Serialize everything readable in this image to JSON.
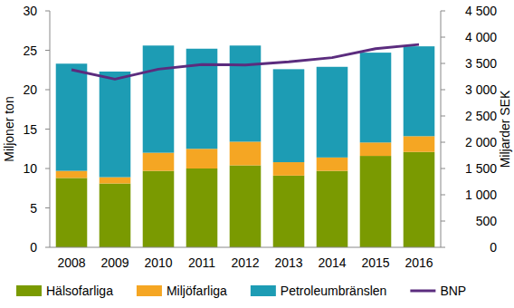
{
  "chart_data": {
    "type": "bar",
    "stacked": true,
    "grid": false,
    "legend": "bottom",
    "y_label": "Miljoner ton",
    "y2_label": "Miljarder SEK",
    "categories": [
      "2008",
      "2009",
      "2010",
      "2011",
      "2012",
      "2013",
      "2014",
      "2015",
      "2016"
    ],
    "ylim": [
      0,
      30
    ],
    "yticks": [
      0,
      5,
      10,
      15,
      20,
      25,
      30
    ],
    "y2lim": [
      0,
      4500
    ],
    "y2ticks": [
      0,
      500,
      {
        "value": 1000,
        "label": "1 000"
      },
      {
        "value": 1500,
        "label": "1 500"
      },
      {
        "value": 2000,
        "label": "2 000"
      },
      {
        "value": 2500,
        "label": "2 500"
      },
      {
        "value": 3000,
        "label": "3 000"
      },
      {
        "value": 3500,
        "label": "3 500"
      },
      {
        "value": 4000,
        "label": "4 000"
      },
      {
        "value": 4500,
        "label": "4 500"
      }
    ],
    "series": [
      {
        "name": "Hälsofarliga",
        "color": "#7a9a01",
        "values": [
          8.8,
          8.1,
          9.7,
          10.0,
          10.4,
          9.1,
          9.7,
          11.6,
          12.1
        ]
      },
      {
        "name": "Miljöfarliga",
        "color": "#f5a623",
        "values": [
          0.9,
          0.8,
          2.3,
          2.5,
          3.0,
          1.7,
          1.7,
          1.7,
          2.0
        ]
      },
      {
        "name": "Petroleumbränslen",
        "color": "#1d9cb4",
        "values": [
          13.6,
          13.4,
          13.6,
          12.7,
          12.2,
          11.8,
          11.5,
          11.4,
          11.4
        ]
      },
      {
        "name": "BNP",
        "color": "#5b2c7e",
        "type": "line",
        "axis": "y2",
        "values": [
          3380,
          3200,
          3390,
          3480,
          3470,
          3530,
          3610,
          3780,
          3860
        ]
      }
    ]
  }
}
